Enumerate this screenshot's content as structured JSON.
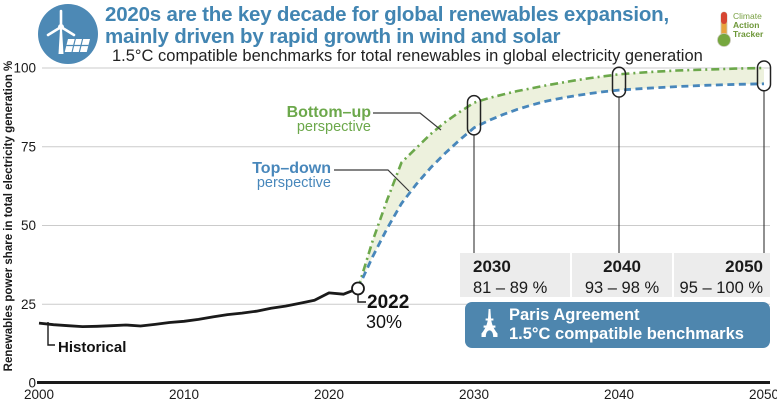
{
  "header": {
    "title_line1": "2020s are the key decade for global renewables expansion,",
    "title_line2": "mainly driven by rapid growth in wind and solar",
    "subtitle": "1.5°C compatible benchmarks for total renewables in global electricity generation",
    "title_color": "#4285b2"
  },
  "cat_logo": {
    "line1": "Climate",
    "line2": "Action",
    "line3": "Tracker"
  },
  "chart_data": {
    "type": "line",
    "title": "1.5°C compatible benchmarks for total renewables in global electricity generation",
    "ylabel": "Renewables power share in total electricity generation  %",
    "xlabel": "",
    "xlim": [
      2000,
      2050
    ],
    "ylim": [
      0,
      100
    ],
    "x_ticks": [
      "2000",
      "2010",
      "2020",
      "2030",
      "2040",
      "2050"
    ],
    "y_ticks": [
      {
        "v": 100,
        "label": "100"
      },
      {
        "v": 75,
        "label": "75"
      },
      {
        "v": 50,
        "label": "50"
      },
      {
        "v": 25,
        "label": "25"
      },
      {
        "v": 0,
        "label": "0"
      }
    ],
    "grid": "horizontal",
    "band_fill": "#edf1dd",
    "series": [
      {
        "name": "Historical",
        "color": "#1a1a1a",
        "style": "solid",
        "points": [
          [
            2000,
            19.0
          ],
          [
            2001,
            18.5
          ],
          [
            2002,
            18.2
          ],
          [
            2003,
            17.9
          ],
          [
            2004,
            18.0
          ],
          [
            2005,
            18.2
          ],
          [
            2006,
            18.4
          ],
          [
            2007,
            18.1
          ],
          [
            2008,
            18.6
          ],
          [
            2009,
            19.2
          ],
          [
            2010,
            19.6
          ],
          [
            2011,
            20.2
          ],
          [
            2012,
            21.0
          ],
          [
            2013,
            21.7
          ],
          [
            2014,
            22.2
          ],
          [
            2015,
            22.8
          ],
          [
            2016,
            23.7
          ],
          [
            2017,
            24.4
          ],
          [
            2018,
            25.3
          ],
          [
            2019,
            26.3
          ],
          [
            2020,
            28.6
          ],
          [
            2021,
            28.2
          ],
          [
            2022,
            30.0
          ]
        ]
      },
      {
        "name": "Bottom-up perspective",
        "color": "#6ca84b",
        "style": "dashdot",
        "points": [
          [
            2022,
            30
          ],
          [
            2023,
            45
          ],
          [
            2024,
            58
          ],
          [
            2025,
            70
          ],
          [
            2026,
            74.5
          ],
          [
            2027,
            79
          ],
          [
            2028,
            82.8
          ],
          [
            2029,
            86
          ],
          [
            2030,
            89
          ],
          [
            2031,
            90.4
          ],
          [
            2032,
            91.6
          ],
          [
            2033,
            92.7
          ],
          [
            2034,
            93.6
          ],
          [
            2035,
            94.5
          ],
          [
            2036,
            95.3
          ],
          [
            2037,
            96.1
          ],
          [
            2038,
            96.8
          ],
          [
            2039,
            97.4
          ],
          [
            2040,
            98
          ],
          [
            2042,
            98.7
          ],
          [
            2044,
            99.2
          ],
          [
            2046,
            99.5
          ],
          [
            2048,
            99.8
          ],
          [
            2050,
            100
          ]
        ]
      },
      {
        "name": "Top-down perspective",
        "color": "#4887bb",
        "style": "dashed",
        "points": [
          [
            2022,
            30
          ],
          [
            2023,
            40
          ],
          [
            2024,
            49
          ],
          [
            2025,
            57
          ],
          [
            2026,
            63
          ],
          [
            2027,
            68.3
          ],
          [
            2028,
            72.9
          ],
          [
            2029,
            77.1
          ],
          [
            2030,
            81
          ],
          [
            2031,
            83.3
          ],
          [
            2032,
            85.2
          ],
          [
            2033,
            86.9
          ],
          [
            2034,
            88.3
          ],
          [
            2035,
            89.5
          ],
          [
            2036,
            90.4
          ],
          [
            2037,
            91.2
          ],
          [
            2038,
            91.9
          ],
          [
            2039,
            92.5
          ],
          [
            2040,
            93
          ],
          [
            2042,
            93.6
          ],
          [
            2044,
            94.1
          ],
          [
            2046,
            94.5
          ],
          [
            2048,
            94.8
          ],
          [
            2050,
            95
          ]
        ]
      }
    ],
    "benchmark_ovals": [
      {
        "year": 2030,
        "low": 81,
        "high": 89
      },
      {
        "year": 2040,
        "low": 93,
        "high": 98
      },
      {
        "year": 2050,
        "low": 95,
        "high": 100
      }
    ],
    "annotations": {
      "marker_2022": {
        "year": "2022",
        "value": "30%"
      },
      "historical_label": "Historical",
      "bottom_up_line1": "Bottom–up",
      "bottom_up_line2": "perspective",
      "top_down_line1": "Top–down",
      "top_down_line2": "perspective"
    }
  },
  "benchmarks": {
    "items": [
      {
        "year": "2030",
        "range": "81 – 89 %"
      },
      {
        "year": "2040",
        "range": "93 – 98 %"
      },
      {
        "year": "2050",
        "range": "95 – 100 %"
      }
    ],
    "footer_line1": "Paris Agreement",
    "footer_line2": "1.5°C compatible benchmarks"
  }
}
